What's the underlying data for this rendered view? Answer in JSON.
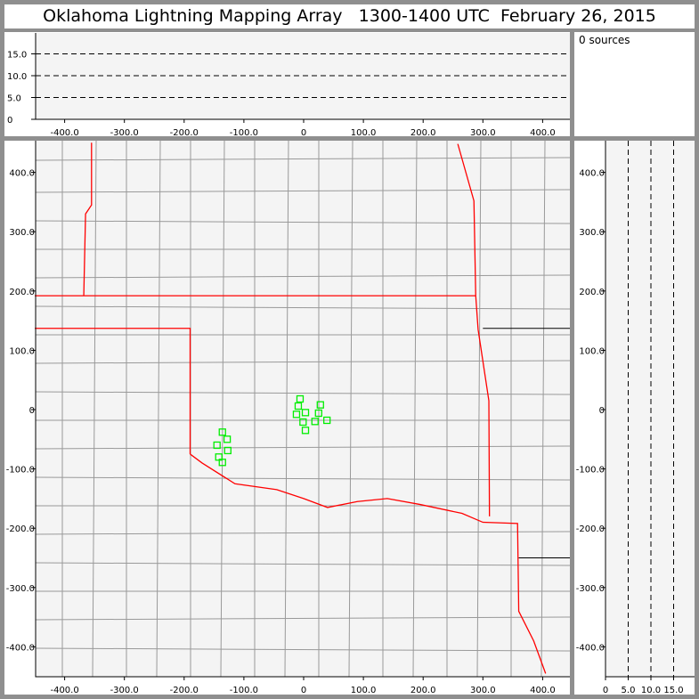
{
  "title": "Oklahoma Lightning Mapping Array   1300-1400 UTC  February 26, 2015",
  "source_count_label": "0 sources",
  "colors": {
    "source_marker": "#00ee00",
    "state_border": "#ff0000",
    "county_border": "#999999",
    "plot_bg": "#f4f4f4",
    "frame": "#8f8f8f"
  },
  "chart_data": [
    {
      "type": "scatter",
      "panel": "altitude-vs-east-west",
      "xlim": [
        -450,
        450
      ],
      "ylim": [
        0,
        20
      ],
      "xticks": [
        "-400.0",
        "-300.0",
        "-200.0",
        "-100.0",
        "0",
        "100.0",
        "200.0",
        "300.0",
        "400.0"
      ],
      "yticks": [
        "0",
        "5.0",
        "10.0",
        "15.0"
      ],
      "grid": "dashed horizontal at 5, 10, 15"
    },
    {
      "type": "scatter",
      "panel": "plan-view-map",
      "xlim": [
        -450,
        450
      ],
      "ylim": [
        -450,
        450
      ],
      "xticks": [
        "-400.0",
        "-300.0",
        "-200.0",
        "-100.0",
        "0",
        "100.0",
        "200.0",
        "300.0",
        "400.0"
      ],
      "yticks": [
        "-400.0",
        "-300.0",
        "-200.0",
        "-100.0",
        "0",
        "100.0",
        "200.0",
        "300.0",
        "400.0"
      ],
      "points": [
        [
          -6,
          18
        ],
        [
          -9,
          6
        ],
        [
          -12,
          -8
        ],
        [
          3,
          -5
        ],
        [
          28,
          8
        ],
        [
          25,
          -6
        ],
        [
          19,
          -20
        ],
        [
          39,
          -18
        ],
        [
          -1,
          -21
        ],
        [
          3,
          -35
        ],
        [
          -136,
          -38
        ],
        [
          -128,
          -50
        ],
        [
          -145,
          -60
        ],
        [
          -127,
          -69
        ],
        [
          -142,
          -80
        ],
        [
          -136,
          -89
        ]
      ]
    },
    {
      "type": "scatter",
      "panel": "north-south-vs-altitude",
      "xlim": [
        0,
        20
      ],
      "ylim": [
        -450,
        450
      ],
      "xticks": [
        "0",
        "5.0",
        "10.0",
        "15.0"
      ],
      "grid": "dashed vertical at 5, 10, 15"
    }
  ]
}
